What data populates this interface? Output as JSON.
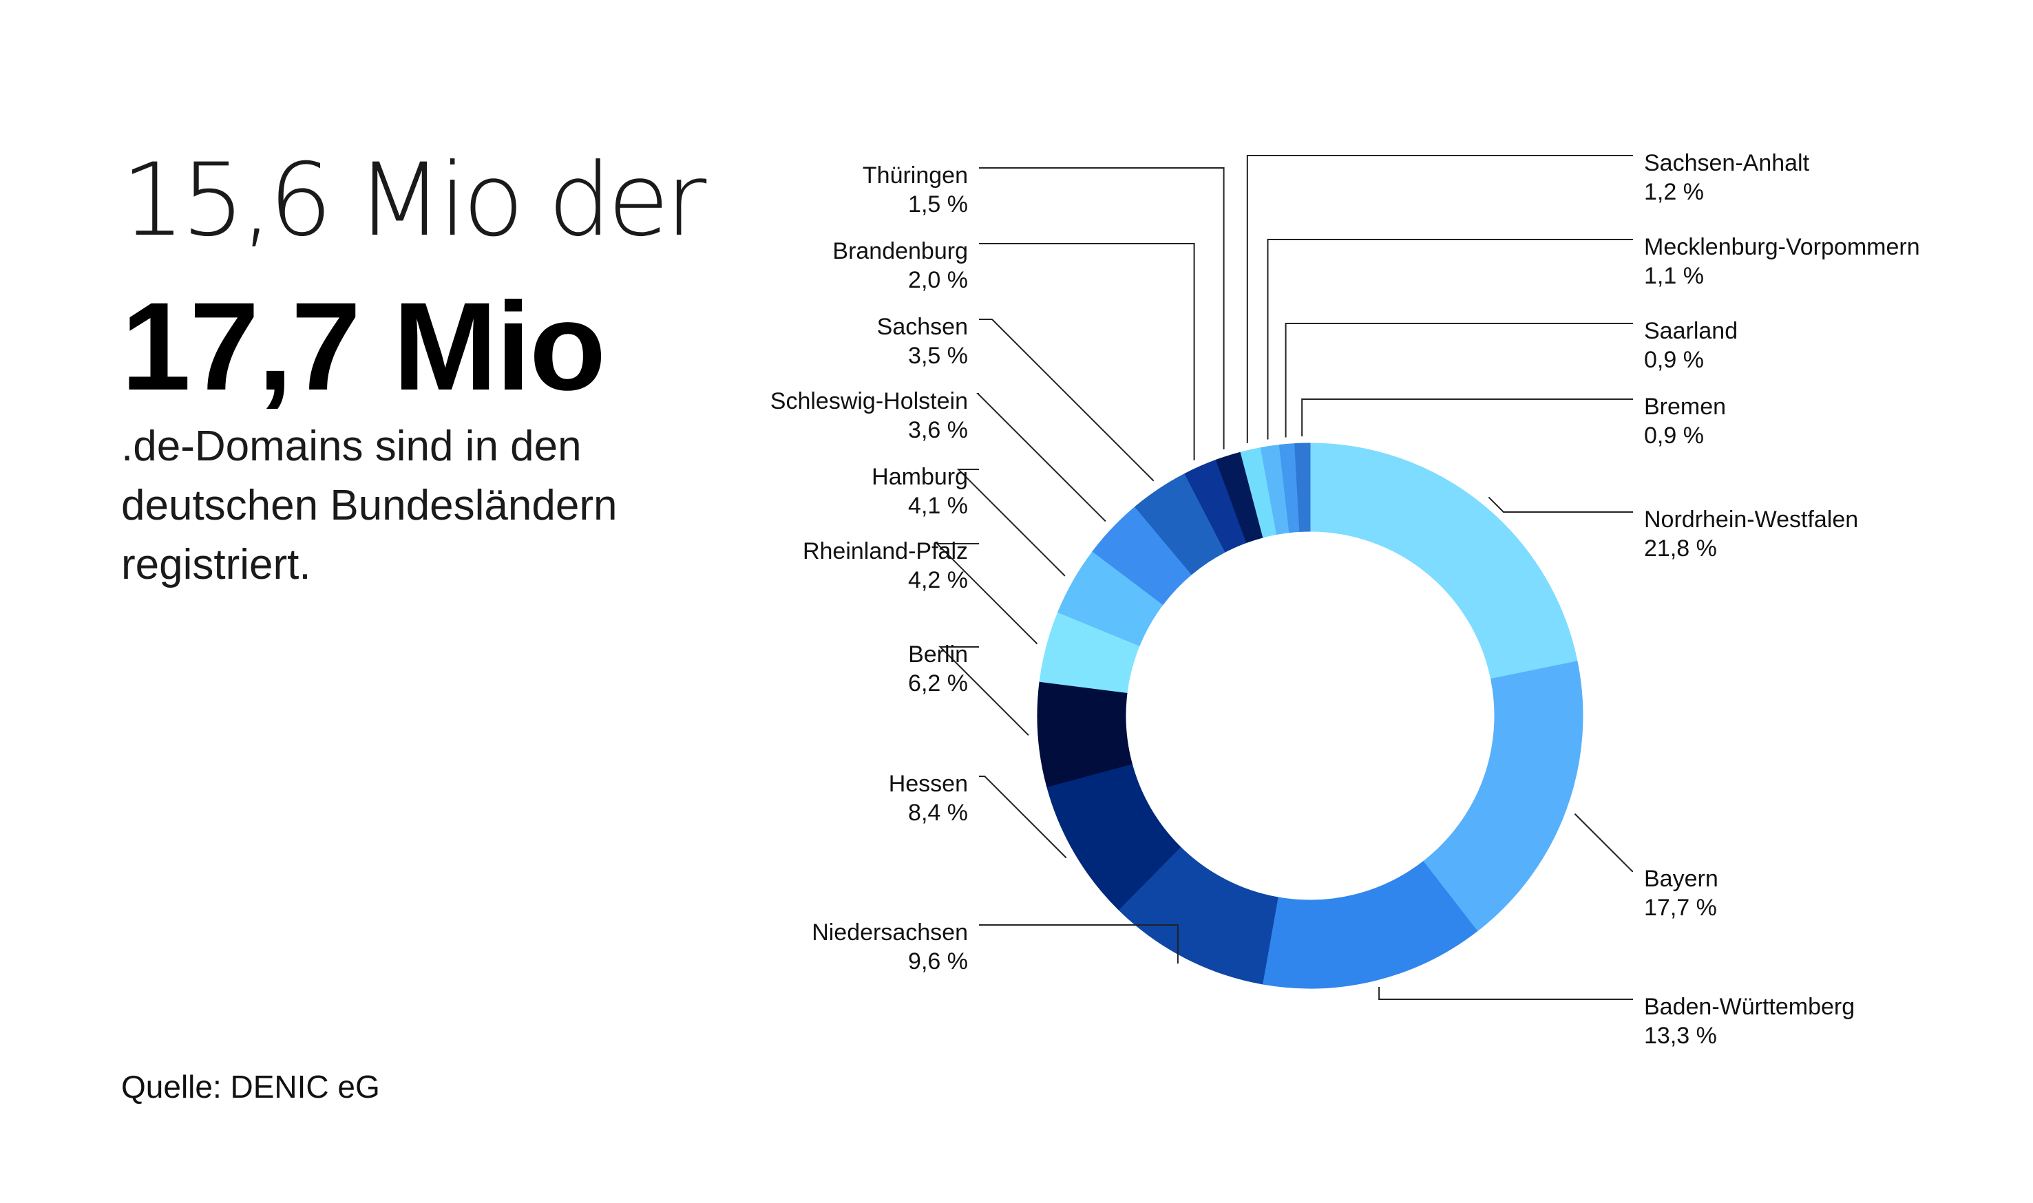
{
  "headline": {
    "line1": "15,6 Mio der",
    "line2": "17,7 Mio",
    "sub": [
      ".de-Domains sind in den",
      "deutschen Bundesländern",
      "registriert."
    ]
  },
  "source": "Quelle: DENIC eG",
  "chart_data": {
    "type": "pie",
    "variant": "donut",
    "legend": "none",
    "slices": [
      {
        "label": "Nordrhein-Westfalen",
        "value_label": "21,8 %",
        "value": 21.8,
        "color": "#7ddcff"
      },
      {
        "label": "Bayern",
        "value_label": "17,7 %",
        "value": 17.7,
        "color": "#57b0fb"
      },
      {
        "label": "Baden-Württemberg",
        "value_label": "13,3 %",
        "value": 13.3,
        "color": "#3186ed"
      },
      {
        "label": "Niedersachsen",
        "value_label": "9,6 %",
        "value": 9.6,
        "color": "#0e46a6"
      },
      {
        "label": "Hessen",
        "value_label": "8,4 %",
        "value": 8.4,
        "color": "#00287a"
      },
      {
        "label": "Berlin",
        "value_label": "6,2 %",
        "value": 6.2,
        "color": "#010d3d"
      },
      {
        "label": "Rheinland-Pfalz",
        "value_label": "4,2 %",
        "value": 4.2,
        "color": "#80e4ff"
      },
      {
        "label": "Hamburg",
        "value_label": "4,1 %",
        "value": 4.1,
        "color": "#5ec0fc"
      },
      {
        "label": "Schleswig-Holstein",
        "value_label": "3,6 %",
        "value": 3.6,
        "color": "#3b8ef0"
      },
      {
        "label": "Sachsen",
        "value_label": "3,5 %",
        "value": 3.5,
        "color": "#1f63c0"
      },
      {
        "label": "Brandenburg",
        "value_label": "2,0 %",
        "value": 2.0,
        "color": "#0b3596"
      },
      {
        "label": "Thüringen",
        "value_label": "1,5 %",
        "value": 1.5,
        "color": "#021a5a"
      },
      {
        "label": "Sachsen-Anhalt",
        "value_label": "1,2 %",
        "value": 1.2,
        "color": "#72dcfd"
      },
      {
        "label": "Mecklenburg-Vorpommern",
        "value_label": "1,1 %",
        "value": 1.1,
        "color": "#5ab8fa"
      },
      {
        "label": "Saarland",
        "value_label": "0,9 %",
        "value": 0.9,
        "color": "#4399ef"
      },
      {
        "label": "Bremen",
        "value_label": "0,9 %",
        "value": 0.9,
        "color": "#2f78d4"
      }
    ]
  }
}
